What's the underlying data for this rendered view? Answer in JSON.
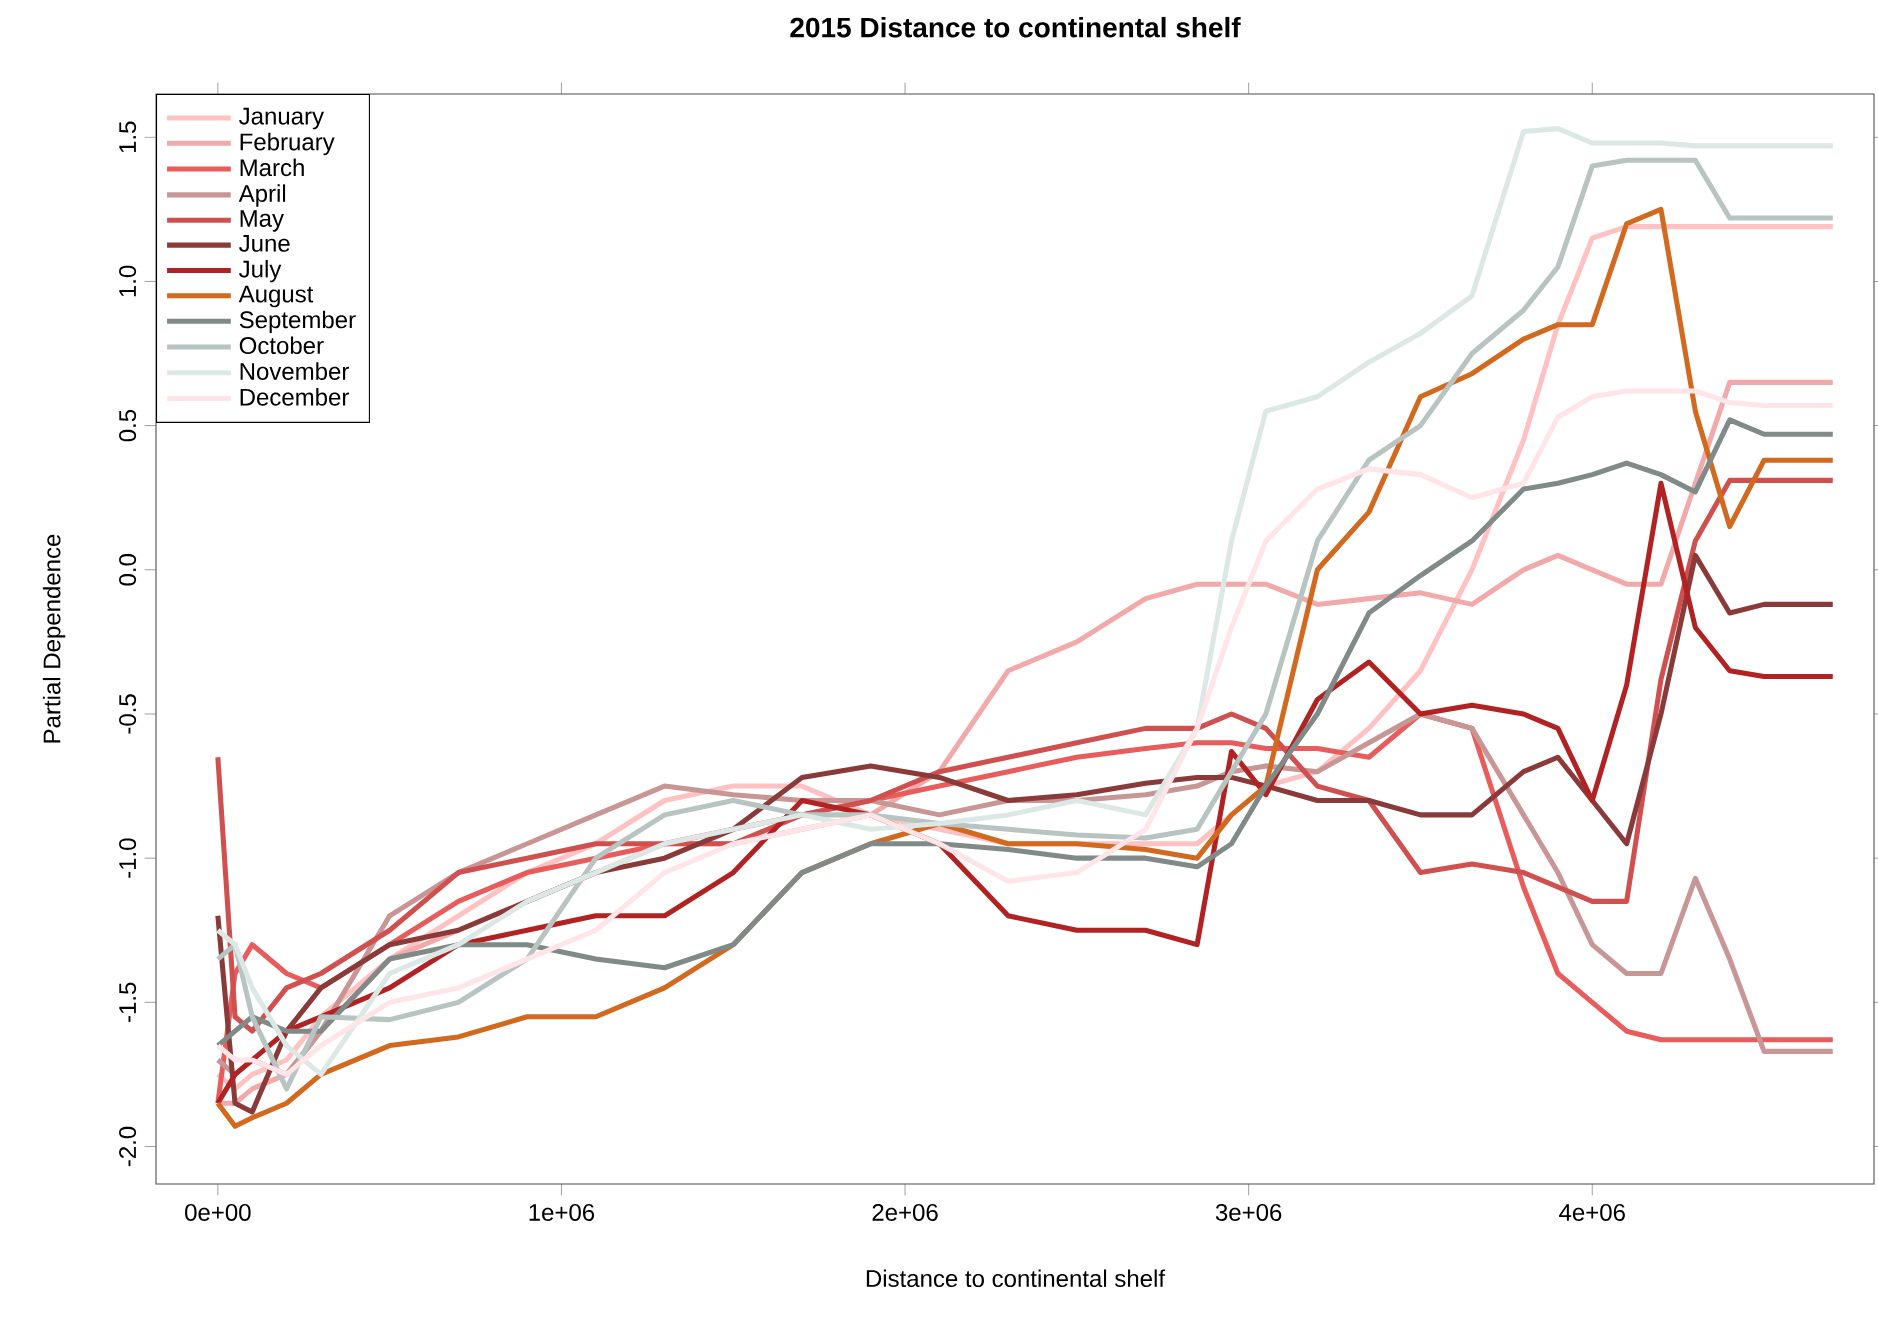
{
  "chart_data": {
    "type": "line",
    "title": "2015 Distance to continental shelf",
    "xlabel": "Distance to continental shelf",
    "ylabel": "Partial Dependence",
    "x": [
      0,
      50000,
      100000,
      200000,
      300000,
      500000,
      700000,
      900000,
      1100000,
      1300000,
      1500000,
      1700000,
      1900000,
      2100000,
      2300000,
      2500000,
      2700000,
      2850000,
      2950000,
      3050000,
      3200000,
      3350000,
      3500000,
      3650000,
      3800000,
      3900000,
      4000000,
      4100000,
      4200000,
      4300000,
      4400000,
      4500000,
      4700000
    ],
    "xlim": [
      -180000,
      4820000
    ],
    "ylim": [
      -2.13,
      1.65
    ],
    "xticks": [
      {
        "value": 0,
        "label": "0e+00"
      },
      {
        "value": 1000000,
        "label": "1e+06"
      },
      {
        "value": 2000000,
        "label": "2e+06"
      },
      {
        "value": 3000000,
        "label": "3e+06"
      },
      {
        "value": 4000000,
        "label": "4e+06"
      }
    ],
    "yticks": [
      {
        "value": -2.0,
        "label": "-2.0"
      },
      {
        "value": -1.5,
        "label": "-1.5"
      },
      {
        "value": -1.0,
        "label": "-1.0"
      },
      {
        "value": -0.5,
        "label": "-0.5"
      },
      {
        "value": 0.0,
        "label": "0.0"
      },
      {
        "value": 0.5,
        "label": "0.5"
      },
      {
        "value": 1.0,
        "label": "1.0"
      },
      {
        "value": 1.5,
        "label": "1.5"
      }
    ],
    "legend": "top left",
    "marker": "none",
    "line_style": "solid",
    "series": [
      {
        "name": "January",
        "color": "#ffc1c1",
        "values": [
          -1.75,
          -1.8,
          -1.75,
          -1.7,
          -1.55,
          -1.35,
          -1.2,
          -1.05,
          -0.95,
          -0.8,
          -0.75,
          -0.75,
          -0.85,
          -0.9,
          -0.95,
          -0.95,
          -0.95,
          -0.95,
          -0.85,
          -0.75,
          -0.7,
          -0.55,
          -0.35,
          0.0,
          0.45,
          0.85,
          1.15,
          1.19,
          1.19,
          1.19,
          1.19,
          1.19,
          1.19
        ]
      },
      {
        "name": "February",
        "color": "#f2a9a9",
        "values": [
          -1.85,
          -1.85,
          -1.8,
          -1.75,
          -1.6,
          -1.35,
          -1.25,
          -1.15,
          -1.05,
          -0.95,
          -0.95,
          -0.9,
          -0.85,
          -0.7,
          -0.35,
          -0.25,
          -0.1,
          -0.05,
          -0.05,
          -0.05,
          -0.12,
          -0.1,
          -0.08,
          -0.12,
          0.0,
          0.05,
          0.0,
          -0.05,
          -0.05,
          0.3,
          0.65,
          0.65,
          0.65
        ]
      },
      {
        "name": "March",
        "color": "#e85c5c",
        "values": [
          -1.85,
          -1.4,
          -1.3,
          -1.4,
          -1.45,
          -1.3,
          -1.15,
          -1.05,
          -1.0,
          -0.95,
          -0.9,
          -0.85,
          -0.8,
          -0.75,
          -0.7,
          -0.65,
          -0.62,
          -0.6,
          -0.6,
          -0.62,
          -0.62,
          -0.65,
          -0.5,
          -0.55,
          -1.1,
          -1.4,
          -1.5,
          -1.6,
          -1.63,
          -1.63,
          -1.63,
          -1.63,
          -1.63
        ]
      },
      {
        "name": "April",
        "color": "#c99696",
        "values": [
          -1.7,
          -1.75,
          -1.7,
          -1.75,
          -1.6,
          -1.2,
          -1.05,
          -0.95,
          -0.85,
          -0.75,
          -0.78,
          -0.8,
          -0.8,
          -0.85,
          -0.8,
          -0.8,
          -0.78,
          -0.75,
          -0.7,
          -0.68,
          -0.7,
          -0.6,
          -0.5,
          -0.55,
          -0.85,
          -1.05,
          -1.3,
          -1.4,
          -1.4,
          -1.07,
          -1.35,
          -1.67,
          -1.67
        ]
      },
      {
        "name": "May",
        "color": "#d05050",
        "values": [
          -0.65,
          -1.55,
          -1.6,
          -1.45,
          -1.4,
          -1.25,
          -1.05,
          -1.0,
          -0.95,
          -0.95,
          -0.95,
          -0.85,
          -0.8,
          -0.7,
          -0.65,
          -0.6,
          -0.55,
          -0.55,
          -0.5,
          -0.55,
          -0.75,
          -0.8,
          -1.05,
          -1.02,
          -1.05,
          -1.1,
          -1.15,
          -1.15,
          -0.38,
          0.1,
          0.31,
          0.31,
          0.31
        ]
      },
      {
        "name": "June",
        "color": "#8b3a3a",
        "values": [
          -1.2,
          -1.85,
          -1.88,
          -1.6,
          -1.45,
          -1.3,
          -1.25,
          -1.15,
          -1.05,
          -1.0,
          -0.9,
          -0.72,
          -0.68,
          -0.72,
          -0.8,
          -0.78,
          -0.74,
          -0.72,
          -0.72,
          -0.75,
          -0.8,
          -0.8,
          -0.85,
          -0.85,
          -0.7,
          -0.65,
          -0.8,
          -0.95,
          -0.5,
          0.05,
          -0.15,
          -0.12,
          -0.12
        ]
      },
      {
        "name": "July",
        "color": "#b22222",
        "values": [
          -1.85,
          -1.75,
          -1.7,
          -1.6,
          -1.55,
          -1.45,
          -1.3,
          -1.25,
          -1.2,
          -1.2,
          -1.05,
          -0.8,
          -0.85,
          -0.95,
          -1.2,
          -1.25,
          -1.25,
          -1.3,
          -0.63,
          -0.78,
          -0.45,
          -0.32,
          -0.5,
          -0.47,
          -0.5,
          -0.55,
          -0.8,
          -0.4,
          0.3,
          -0.2,
          -0.35,
          -0.37,
          -0.37
        ]
      },
      {
        "name": "August",
        "color": "#d2691e",
        "values": [
          -1.85,
          -1.93,
          -1.9,
          -1.85,
          -1.75,
          -1.65,
          -1.62,
          -1.55,
          -1.55,
          -1.45,
          -1.3,
          -1.05,
          -0.95,
          -0.88,
          -0.95,
          -0.95,
          -0.97,
          -1.0,
          -0.85,
          -0.75,
          0.0,
          0.2,
          0.6,
          0.68,
          0.8,
          0.85,
          0.85,
          1.2,
          1.25,
          0.55,
          0.15,
          0.38,
          0.38
        ]
      },
      {
        "name": "September",
        "color": "#808a88",
        "values": [
          -1.65,
          -1.6,
          -1.55,
          -1.6,
          -1.6,
          -1.35,
          -1.3,
          -1.3,
          -1.35,
          -1.38,
          -1.3,
          -1.05,
          -0.95,
          -0.95,
          -0.97,
          -1.0,
          -1.0,
          -1.03,
          -0.95,
          -0.75,
          -0.5,
          -0.15,
          -0.02,
          0.1,
          0.28,
          0.3,
          0.33,
          0.37,
          0.33,
          0.27,
          0.52,
          0.47,
          0.47
        ]
      },
      {
        "name": "October",
        "color": "#b8c4c2",
        "values": [
          -1.35,
          -1.3,
          -1.55,
          -1.8,
          -1.55,
          -1.56,
          -1.5,
          -1.35,
          -1.0,
          -0.85,
          -0.8,
          -0.85,
          -0.85,
          -0.88,
          -0.9,
          -0.92,
          -0.93,
          -0.9,
          -0.7,
          -0.5,
          0.1,
          0.38,
          0.5,
          0.75,
          0.9,
          1.05,
          1.4,
          1.42,
          1.42,
          1.42,
          1.22,
          1.22,
          1.22
        ]
      },
      {
        "name": "November",
        "color": "#dce8e6",
        "values": [
          -1.25,
          -1.3,
          -1.45,
          -1.65,
          -1.75,
          -1.4,
          -1.3,
          -1.15,
          -1.05,
          -0.95,
          -0.9,
          -0.85,
          -0.9,
          -0.88,
          -0.85,
          -0.8,
          -0.85,
          -0.55,
          0.1,
          0.55,
          0.6,
          0.72,
          0.82,
          0.95,
          1.52,
          1.53,
          1.48,
          1.48,
          1.48,
          1.47,
          1.47,
          1.47,
          1.47
        ]
      },
      {
        "name": "December",
        "color": "#ffe4e8",
        "values": [
          -1.65,
          -1.7,
          -1.7,
          -1.75,
          -1.65,
          -1.5,
          -1.45,
          -1.35,
          -1.25,
          -1.05,
          -0.95,
          -0.9,
          -0.85,
          -0.95,
          -1.08,
          -1.05,
          -0.9,
          -0.55,
          -0.2,
          0.1,
          0.28,
          0.35,
          0.33,
          0.25,
          0.3,
          0.53,
          0.6,
          0.62,
          0.62,
          0.62,
          0.58,
          0.57,
          0.57
        ]
      }
    ]
  }
}
